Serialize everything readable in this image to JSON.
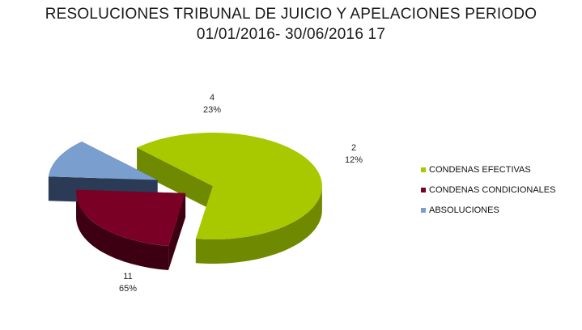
{
  "chart_data": {
    "type": "pie",
    "title_line1": "RESOLUCIONES TRIBUNAL DE JUICIO Y APELACIONES PERIODO",
    "title_line2": "01/01/2016- 30/06/2016 17",
    "slices": [
      {
        "name": "CONDENAS EFECTIVAS",
        "value": 11,
        "percent": "65%",
        "color": "#a8c800",
        "side_color": "#6f8a00"
      },
      {
        "name": "CONDENAS CONDICIONALES",
        "value": 4,
        "percent": "23%",
        "color": "#7a0025",
        "side_color": "#3d0012"
      },
      {
        "name": "ABSOLUCIONES",
        "value": 2,
        "percent": "12%",
        "color": "#7a9fcf",
        "side_color": "#2b3a55"
      }
    ],
    "legend_position": "right"
  }
}
